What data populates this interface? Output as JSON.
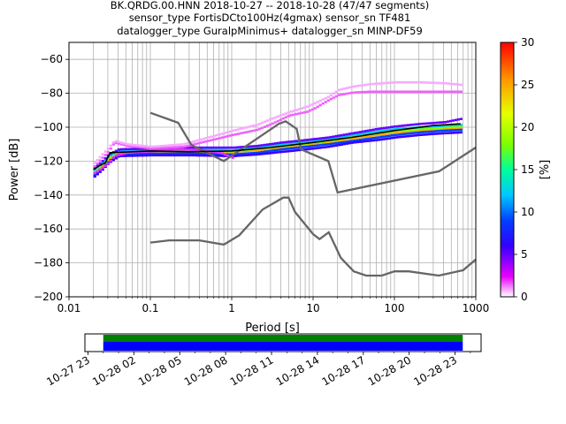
{
  "header": {
    "line1": "BK.QRDG.00.HNN   2018-10-27 -- 2018-10-28  (47/47 segments)",
    "line2": "sensor_type FortisDCto100Hz(4gmax) sensor_sn TF481",
    "line3": "datalogger_type GuralpMinimus+ datalogger_sn MINP-DF59"
  },
  "chart_data": [
    {
      "type": "heatmap",
      "xlabel": "Period [s]",
      "ylabel": "Power [dB]",
      "xscale": "log",
      "xlim": [
        0.01,
        1000
      ],
      "ylim": [
        -200,
        -50
      ],
      "grid": true,
      "x_ticks": [
        {
          "v": 0.01,
          "label": "0.01"
        },
        {
          "v": 0.1,
          "label": "0.1"
        },
        {
          "v": 1,
          "label": "1"
        },
        {
          "v": 10,
          "label": "10"
        },
        {
          "v": 100,
          "label": "100"
        },
        {
          "v": 1000,
          "label": "1000"
        }
      ],
      "y_ticks": [
        {
          "v": -60,
          "label": "−60"
        },
        {
          "v": -80,
          "label": "−80"
        },
        {
          "v": -100,
          "label": "−100"
        },
        {
          "v": -120,
          "label": "−120"
        },
        {
          "v": -140,
          "label": "−140"
        },
        {
          "v": -160,
          "label": "−160"
        },
        {
          "v": -180,
          "label": "−180"
        },
        {
          "v": -200,
          "label": "−200"
        }
      ],
      "colorbar": {
        "label": "[%]",
        "range": [
          0,
          30
        ],
        "ticks": [
          {
            "v": 0,
            "label": "0"
          },
          {
            "v": 5,
            "label": "5"
          },
          {
            "v": 10,
            "label": "10"
          },
          {
            "v": 15,
            "label": "15"
          },
          {
            "v": 20,
            "label": "20"
          },
          {
            "v": 25,
            "label": "25"
          },
          {
            "v": 30,
            "label": "30"
          }
        ]
      },
      "noise_model_high": [
        [
          0.1,
          -91.5
        ],
        [
          0.22,
          -97.4
        ],
        [
          0.32,
          -110.5
        ],
        [
          0.8,
          -120
        ],
        [
          3.8,
          -98
        ],
        [
          4.6,
          -96.5
        ],
        [
          6.3,
          -101
        ],
        [
          7.1,
          -113
        ],
        [
          15.4,
          -120
        ],
        [
          20,
          -138.5
        ],
        [
          354.8,
          -126
        ],
        [
          1000,
          -112
        ]
      ],
      "noise_model_low": [
        [
          0.1,
          -168
        ],
        [
          0.17,
          -166.7
        ],
        [
          0.4,
          -166.7
        ],
        [
          0.8,
          -169.2
        ],
        [
          1.24,
          -163.7
        ],
        [
          2.4,
          -148.5
        ],
        [
          4.3,
          -141.5
        ],
        [
          5,
          -141.5
        ],
        [
          6,
          -150
        ],
        [
          10,
          -163
        ],
        [
          12,
          -166
        ],
        [
          15.6,
          -162
        ],
        [
          21.9,
          -177
        ],
        [
          31.6,
          -185
        ],
        [
          45,
          -187.5
        ],
        [
          70,
          -187.5
        ],
        [
          100,
          -185
        ],
        [
          150,
          -185
        ],
        [
          350,
          -187.5
        ],
        [
          700,
          -184.3
        ],
        [
          1000,
          -178
        ]
      ],
      "mean_psd": [
        [
          0.02,
          -125
        ],
        [
          0.023,
          -123
        ],
        [
          0.028,
          -121
        ],
        [
          0.032,
          -115
        ],
        [
          0.1,
          -114
        ],
        [
          0.3,
          -114.5
        ],
        [
          1,
          -114
        ],
        [
          3,
          -112
        ],
        [
          10,
          -109
        ],
        [
          30,
          -106
        ],
        [
          100,
          -102
        ],
        [
          300,
          -99
        ],
        [
          650,
          -98
        ]
      ],
      "bands": [
        {
          "pct": 25,
          "x": [
            0.02,
            0.025,
            0.03,
            0.04,
            0.1,
            0.3,
            1,
            2,
            4,
            8,
            15,
            30,
            60,
            100,
            200,
            400,
            650
          ],
          "y": [
            -127,
            -123,
            -119,
            -115,
            -114.5,
            -114.5,
            -114.5,
            -113.5,
            -112,
            -110.5,
            -109,
            -106.5,
            -104.5,
            -103,
            -102,
            -101,
            -100.5
          ]
        },
        {
          "pct": 18,
          "x": [
            0.02,
            0.025,
            0.03,
            0.04,
            0.1,
            0.3,
            1,
            2,
            4,
            8,
            15,
            30,
            60,
            100,
            200,
            400,
            650
          ],
          "y": [
            -126,
            -122,
            -118,
            -114,
            -113.5,
            -113.8,
            -114,
            -112.5,
            -111,
            -109.5,
            -108,
            -105.5,
            -103.5,
            -102,
            -101,
            -100,
            -99.5
          ]
        },
        {
          "pct": 12,
          "x": [
            0.02,
            0.025,
            0.03,
            0.04,
            0.1,
            0.3,
            1,
            2,
            4,
            8,
            15,
            30,
            60,
            100,
            200,
            400,
            650
          ],
          "y": [
            -125,
            -121,
            -117,
            -113.5,
            -113,
            -113,
            -113.5,
            -112,
            -110,
            -108.5,
            -107,
            -104.5,
            -102.5,
            -101,
            -100,
            -99,
            -98.5
          ]
        },
        {
          "pct": 9,
          "x": [
            0.02,
            0.025,
            0.03,
            0.04,
            0.1,
            0.3,
            1,
            2,
            4,
            8,
            15,
            30,
            60,
            100,
            200,
            400,
            650
          ],
          "y": [
            -128,
            -124,
            -120,
            -116,
            -115.5,
            -115.5,
            -116,
            -115,
            -113,
            -111.5,
            -110,
            -108,
            -106,
            -104.5,
            -103,
            -102,
            -101.5
          ]
        },
        {
          "pct": 5,
          "x": [
            0.02,
            0.025,
            0.03,
            0.04,
            0.1,
            0.3,
            1,
            2,
            4,
            8,
            15,
            30,
            60,
            100,
            200,
            400,
            650
          ],
          "y": [
            -124,
            -120,
            -116,
            -113,
            -112.5,
            -112,
            -112,
            -111,
            -109,
            -107.5,
            -106,
            -103.5,
            -101,
            -99.5,
            -98,
            -97,
            -95
          ]
        },
        {
          "pct": 6,
          "x": [
            0.02,
            0.025,
            0.03,
            0.04,
            0.1,
            0.3,
            1,
            2,
            4,
            8,
            15,
            30,
            60,
            100,
            200,
            400,
            650
          ],
          "y": [
            -129,
            -125,
            -121,
            -117,
            -116.5,
            -116.5,
            -117,
            -116,
            -114.5,
            -113,
            -111.5,
            -109,
            -107.5,
            -106,
            -104.5,
            -103.5,
            -103
          ]
        },
        {
          "pct": 1.5,
          "x": [
            0.02,
            0.025,
            0.03,
            0.035,
            0.05,
            0.1,
            0.25,
            0.5,
            1,
            2,
            3,
            5,
            8,
            10,
            15,
            20,
            30,
            50,
            100,
            200,
            400,
            650
          ],
          "y": [
            -123,
            -118,
            -114,
            -109,
            -111,
            -112.5,
            -111.5,
            -108,
            -104.5,
            -101.5,
            -98,
            -93,
            -91,
            -89,
            -84,
            -81,
            -79.5,
            -79,
            -79,
            -79,
            -79,
            -79
          ]
        },
        {
          "pct": 0.8,
          "x": [
            0.02,
            0.025,
            0.03,
            0.035,
            0.05,
            0.1,
            0.25,
            0.5,
            1,
            2,
            3,
            5,
            8,
            10,
            15,
            20,
            30,
            50,
            100,
            200,
            400,
            650
          ],
          "y": [
            -121,
            -116,
            -112,
            -108,
            -110,
            -111.5,
            -110,
            -106,
            -102,
            -98.5,
            -95,
            -91,
            -88,
            -86,
            -82,
            -78,
            -76,
            -74.5,
            -73.5,
            -73.5,
            -74,
            -75
          ]
        },
        {
          "pct": 2,
          "x": [
            0.02,
            0.025,
            0.03,
            0.035,
            0.05,
            0.1,
            0.2,
            0.4,
            0.7,
            1
          ],
          "y": [
            -127,
            -124,
            -121,
            -117,
            -115,
            -114,
            -113,
            -113.5,
            -115,
            -118
          ]
        }
      ]
    },
    {
      "type": "timeline",
      "x_ticks": [
        "10-27 23",
        "10-28 02",
        "10-28 05",
        "10-28 08",
        "10-28 11",
        "10-28 14",
        "10-28 17",
        "10-28 20",
        "10-28 23"
      ],
      "x_tick_hours": [
        23,
        26,
        29,
        32,
        35,
        38,
        41,
        44,
        47
      ],
      "xlim_hours": [
        22.8,
        48.7
      ],
      "coverage_hours": [
        24,
        47.5
      ],
      "colors": {
        "data": "#0000ff",
        "gaps_ok": "#008000"
      }
    }
  ]
}
